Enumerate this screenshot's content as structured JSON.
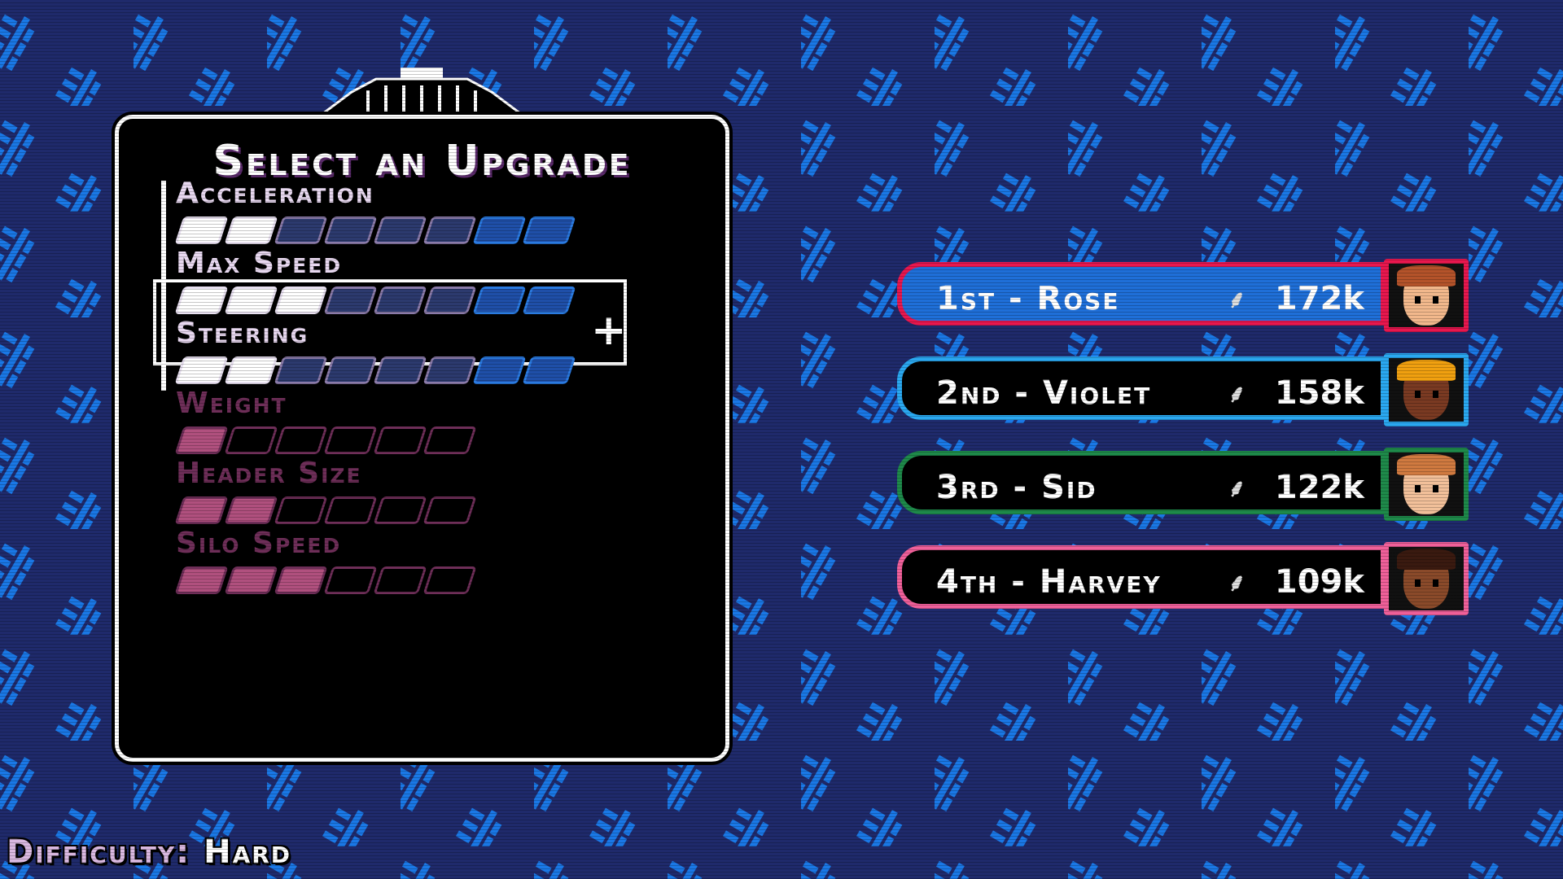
{
  "colors": {
    "background": "#1f2a6b",
    "pattern": "#1a78e6",
    "panel": "#000000",
    "seg_filled": "#ffffff",
    "seg_empty": "#2c3a6e",
    "seg_empty_border": "#8a7aa8",
    "seg_bonus": "#1f4fa8",
    "seg_bonus_border": "#2a7ae0",
    "locked_filled": "#b0507e",
    "locked_border": "#6e2e58"
  },
  "panel": {
    "title": "Select an Upgrade",
    "plus_label": "+",
    "selected_index": 1
  },
  "upgrades": [
    {
      "label": "Acceleration",
      "level": 2,
      "max": 8,
      "bonus_from": 6,
      "locked": false
    },
    {
      "label": "Max Speed",
      "level": 3,
      "max": 8,
      "bonus_from": 6,
      "locked": false
    },
    {
      "label": "Steering",
      "level": 2,
      "max": 8,
      "bonus_from": 6,
      "locked": false
    },
    {
      "label": "Weight",
      "level": 1,
      "max": 6,
      "locked": true
    },
    {
      "label": "Header Size",
      "level": 2,
      "max": 6,
      "locked": true
    },
    {
      "label": "Silo Speed",
      "level": 3,
      "max": 6,
      "locked": true
    }
  ],
  "leaderboard": [
    {
      "rank": "1st",
      "name": "Rose",
      "label": "1st - Rose",
      "score": "172k",
      "border": "#e8174e",
      "fill": "#1f6fd8",
      "skin": "#f2b88c",
      "hair": "#b4532a"
    },
    {
      "rank": "2nd",
      "name": "Violet",
      "label": "2nd - Violet",
      "score": "158k",
      "border": "#2aa8f0",
      "fill": "#000000",
      "skin": "#7a3a22",
      "hair": "#f0a010"
    },
    {
      "rank": "3rd",
      "name": "Sid",
      "label": "3rd - Sid",
      "score": "122k",
      "border": "#1e8a4a",
      "fill": "#000000",
      "skin": "#f2c09a",
      "hair": "#d07a40"
    },
    {
      "rank": "4th",
      "name": "Harvey",
      "label": "4th - Harvey",
      "score": "109k",
      "border": "#f0609a",
      "fill": "#000000",
      "skin": "#8a4a2a",
      "hair": "#3a1a10"
    }
  ],
  "score_icon": "wheat-icon",
  "difficulty": {
    "label": "Difficulty:",
    "value": "Hard"
  }
}
